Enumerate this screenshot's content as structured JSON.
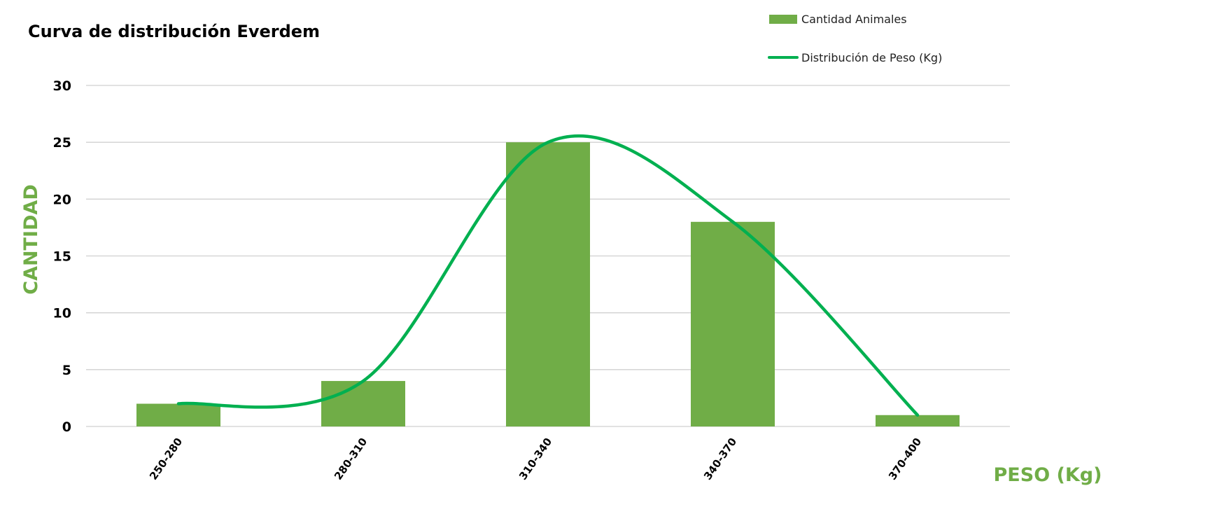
{
  "chart_data": {
    "type": "bar",
    "title": "Curva de distribución Everdem",
    "xlabel": "PESO (Kg)",
    "ylabel": "CANTIDAD",
    "categories": [
      "250-280",
      "280-310",
      "310-340",
      "340-370",
      "370-400"
    ],
    "series": [
      {
        "name": "Cantidad Animales",
        "type": "bar",
        "values": [
          2,
          4,
          25,
          18,
          1
        ]
      },
      {
        "name": "Distribución de Peso (Kg)",
        "type": "line",
        "smooth": true,
        "values": [
          2,
          4,
          25,
          18,
          1
        ]
      }
    ],
    "ylim": [
      0,
      30
    ],
    "yticks": [
      0,
      5,
      10,
      15,
      20,
      25,
      30
    ],
    "grid": true,
    "legend": "top-right"
  },
  "colors": {
    "bar": "#70ad47",
    "line": "#00b050",
    "axis_label": "#70ad47",
    "grid": "#d0d0d0"
  }
}
